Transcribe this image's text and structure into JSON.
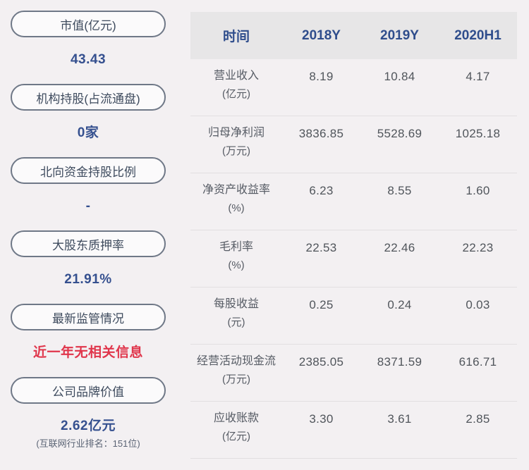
{
  "colors": {
    "page_bg": "#f3f0f2",
    "pill_border": "#6f7887",
    "pill_text": "#3e4b5e",
    "accent_blue": "#35508f",
    "alert_red": "#e0354b",
    "header_bg": "#e7e6e7",
    "header_text": "#2f4d8c",
    "table_text": "#565b64",
    "divider": "#e2dfe1"
  },
  "sidebar": {
    "items": [
      {
        "label": "市值(亿元)",
        "value": "43.43"
      },
      {
        "label": "机构持股(占流通盘)",
        "value": "0家"
      },
      {
        "label": "北向资金持股比例",
        "value": "-"
      },
      {
        "label": "大股东质押率",
        "value": "21.91%"
      },
      {
        "label": "最新监管情况",
        "value": "近一年无相关信息"
      },
      {
        "label": "公司品牌价值",
        "value": "2.62亿元",
        "note": "(互联网行业排名：151位)"
      }
    ]
  },
  "table": {
    "header": [
      "时间",
      "2018Y",
      "2019Y",
      "2020H1"
    ],
    "rows": [
      {
        "name": "营业收入",
        "unit": "(亿元)",
        "values": [
          "8.19",
          "10.84",
          "4.17"
        ]
      },
      {
        "name": "归母净利润",
        "unit": "(万元)",
        "values": [
          "3836.85",
          "5528.69",
          "1025.18"
        ]
      },
      {
        "name": "净资产收益率",
        "unit": "(%)",
        "values": [
          "6.23",
          "8.55",
          "1.60"
        ]
      },
      {
        "name": "毛利率",
        "unit": "(%)",
        "values": [
          "22.53",
          "22.46",
          "22.23"
        ]
      },
      {
        "name": "每股收益",
        "unit": "(元)",
        "values": [
          "0.25",
          "0.24",
          "0.03"
        ]
      },
      {
        "name": "经营活动现金流",
        "unit": "(万元)",
        "values": [
          "2385.05",
          "8371.59",
          "616.71"
        ]
      },
      {
        "name": "应收账款",
        "unit": "(亿元)",
        "values": [
          "3.30",
          "3.61",
          "2.85"
        ]
      }
    ]
  }
}
